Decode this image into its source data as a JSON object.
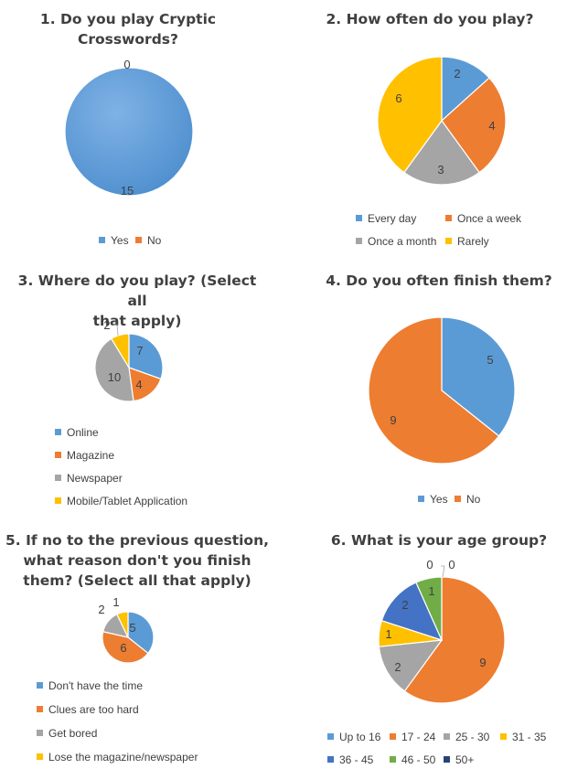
{
  "colors": {
    "blue": "#5b9bd5",
    "orange": "#ed7d31",
    "gray": "#a5a5a5",
    "yellow": "#ffc000",
    "darkblue": "#4472c4",
    "green": "#70ad47",
    "navy": "#264478"
  },
  "chart_data": [
    {
      "type": "pie",
      "title_lines": [
        "1. Do you play Cryptic",
        "Crosswords?"
      ],
      "categories": [
        "Yes",
        "No"
      ],
      "values": [
        15,
        0
      ],
      "colors": [
        "#5b9bd5",
        "#ed7d31"
      ],
      "legend": "bottom"
    },
    {
      "type": "pie",
      "title_lines": [
        "2. How often do you play?"
      ],
      "categories": [
        "Every day",
        "Once a week",
        "Once a month",
        "Rarely"
      ],
      "values": [
        2,
        4,
        3,
        6
      ],
      "colors": [
        "#5b9bd5",
        "#ed7d31",
        "#a5a5a5",
        "#ffc000"
      ],
      "legend": "bottom"
    },
    {
      "type": "pie",
      "title_lines": [
        "3. Where do you play? (Select all",
        "that apply)"
      ],
      "categories": [
        "Online",
        "Magazine",
        "Newspaper",
        "Mobile/Tablet Application"
      ],
      "values": [
        7,
        4,
        10,
        2
      ],
      "colors": [
        "#5b9bd5",
        "#ed7d31",
        "#a5a5a5",
        "#ffc000"
      ],
      "legend": "bottom"
    },
    {
      "type": "pie",
      "title_lines": [
        "4. Do you often finish them?"
      ],
      "categories": [
        "Yes",
        "No"
      ],
      "values": [
        5,
        9
      ],
      "colors": [
        "#5b9bd5",
        "#ed7d31"
      ],
      "legend": "bottom"
    },
    {
      "type": "pie",
      "title_lines": [
        "5. If no to the previous question,",
        "what reason don't you finish",
        "them? (Select all that apply)"
      ],
      "categories": [
        "Don't have the time",
        "Clues are too hard",
        "Get bored",
        "Lose the magazine/newspaper"
      ],
      "values": [
        5,
        6,
        2,
        1
      ],
      "colors": [
        "#5b9bd5",
        "#ed7d31",
        "#a5a5a5",
        "#ffc000"
      ],
      "legend": "bottom"
    },
    {
      "type": "pie",
      "title_lines": [
        "6. What is your age group?"
      ],
      "categories": [
        "Up to 16",
        "17 - 24",
        "25 - 30",
        "31 - 35",
        "36 - 45",
        "46 - 50",
        "50+"
      ],
      "values": [
        0,
        9,
        2,
        1,
        2,
        1,
        0
      ],
      "colors": [
        "#5b9bd5",
        "#ed7d31",
        "#a5a5a5",
        "#ffc000",
        "#4472c4",
        "#70ad47",
        "#264478"
      ],
      "legend": "bottom"
    }
  ]
}
